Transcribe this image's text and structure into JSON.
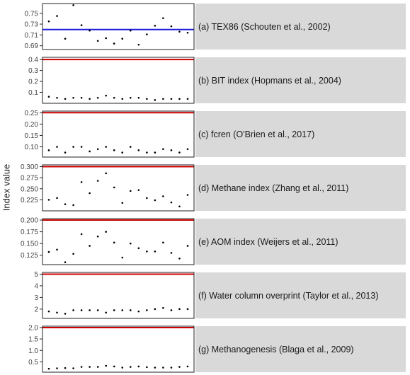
{
  "ylabel": "Index value",
  "chart_data": [
    {
      "type": "scatter",
      "title": "(a)  TEX86 (Schouten et al., 2002)",
      "ylim": [
        0.683,
        0.768
      ],
      "yticks": [
        0.69,
        0.71,
        0.73,
        0.75
      ],
      "tick_labels": [
        "0.69",
        "0.71",
        "0.73",
        "0.75"
      ],
      "threshold": 0.72,
      "threshold_color": "#1a1adc",
      "values": [
        0.735,
        0.745,
        0.703,
        0.765,
        0.728,
        0.718,
        0.699,
        0.704,
        0.694,
        0.703,
        0.718,
        0.692,
        0.711,
        0.727,
        0.741,
        0.726,
        0.716,
        0.714
      ]
    },
    {
      "type": "scatter",
      "title": "(b)  BIT index (Hopmans et al., 2004)",
      "ylim": [
        0.0,
        0.42
      ],
      "yticks": [
        0.1,
        0.2,
        0.3,
        0.4
      ],
      "tick_labels": [
        "0.1",
        "0.2",
        "0.3",
        "0.4"
      ],
      "threshold": 0.4,
      "threshold_color": "#cc0000",
      "values": [
        0.06,
        0.05,
        0.04,
        0.05,
        0.05,
        0.04,
        0.05,
        0.07,
        0.05,
        0.04,
        0.05,
        0.05,
        0.04,
        0.03,
        0.04,
        0.04,
        0.04,
        0.04
      ]
    },
    {
      "type": "scatter",
      "title": "(c)  fcren (O'Brien et al., 2017)",
      "ylim": [
        0.055,
        0.257
      ],
      "yticks": [
        0.1,
        0.15,
        0.2,
        0.25
      ],
      "tick_labels": [
        "0.10",
        "0.15",
        "0.20",
        "0.25"
      ],
      "threshold": 0.25,
      "threshold_color": "#cc0000",
      "values": [
        0.085,
        0.1,
        0.075,
        0.1,
        0.1,
        0.08,
        0.09,
        0.1,
        0.085,
        0.075,
        0.1,
        0.085,
        0.075,
        0.075,
        0.09,
        0.085,
        0.075,
        0.09
      ]
    },
    {
      "type": "scatter",
      "title": "(d)  Methane index (Zhang et al., 2011)",
      "ylim": [
        0.2,
        0.304
      ],
      "yticks": [
        0.225,
        0.25,
        0.275,
        0.3
      ],
      "tick_labels": [
        "0.225",
        "0.250",
        "0.275",
        "0.300"
      ],
      "threshold": 0.3,
      "threshold_color": "#cc0000",
      "values": [
        0.225,
        0.229,
        0.215,
        0.213,
        0.265,
        0.24,
        0.268,
        0.285,
        0.253,
        0.218,
        0.245,
        0.247,
        0.229,
        0.224,
        0.233,
        0.219,
        0.21,
        0.236
      ]
    },
    {
      "type": "scatter",
      "title": "(e)  AOM index (Weijers et al., 2011)",
      "ylim": [
        0.105,
        0.203
      ],
      "yticks": [
        0.125,
        0.15,
        0.175,
        0.2
      ],
      "tick_labels": [
        "0.125",
        "0.150",
        "0.175",
        "0.200"
      ],
      "threshold": 0.2,
      "threshold_color": "#cc0000",
      "values": [
        0.132,
        0.137,
        0.11,
        0.128,
        0.17,
        0.145,
        0.165,
        0.175,
        0.152,
        0.12,
        0.15,
        0.14,
        0.133,
        0.133,
        0.152,
        0.13,
        0.118,
        0.145
      ]
    },
    {
      "type": "scatter",
      "title": "(f)  Water column overprint (Taylor et al., 2013)",
      "ylim": [
        1.2,
        5.15
      ],
      "yticks": [
        2,
        3,
        4,
        5
      ],
      "tick_labels": [
        "2",
        "3",
        "4",
        "5"
      ],
      "threshold": 5,
      "threshold_color": "#cc0000",
      "values": [
        1.8,
        1.7,
        1.6,
        1.9,
        1.9,
        1.9,
        1.9,
        1.7,
        1.9,
        1.9,
        1.9,
        1.8,
        1.9,
        2.0,
        2.1,
        1.9,
        2.0,
        2.0
      ]
    },
    {
      "type": "scatter",
      "title": "(g)  Methanogenesis (Blaga et al., 2009)",
      "ylim": [
        0.05,
        2.06
      ],
      "yticks": [
        0.5,
        1.0,
        1.5,
        2.0
      ],
      "tick_labels": [
        "0.5",
        "1.0",
        "1.5",
        "2.0"
      ],
      "threshold": 2.0,
      "threshold_color": "#cc0000",
      "values": [
        0.2,
        0.22,
        0.23,
        0.22,
        0.28,
        0.28,
        0.28,
        0.33,
        0.3,
        0.25,
        0.28,
        0.3,
        0.27,
        0.25,
        0.25,
        0.25,
        0.28,
        0.3
      ]
    }
  ]
}
